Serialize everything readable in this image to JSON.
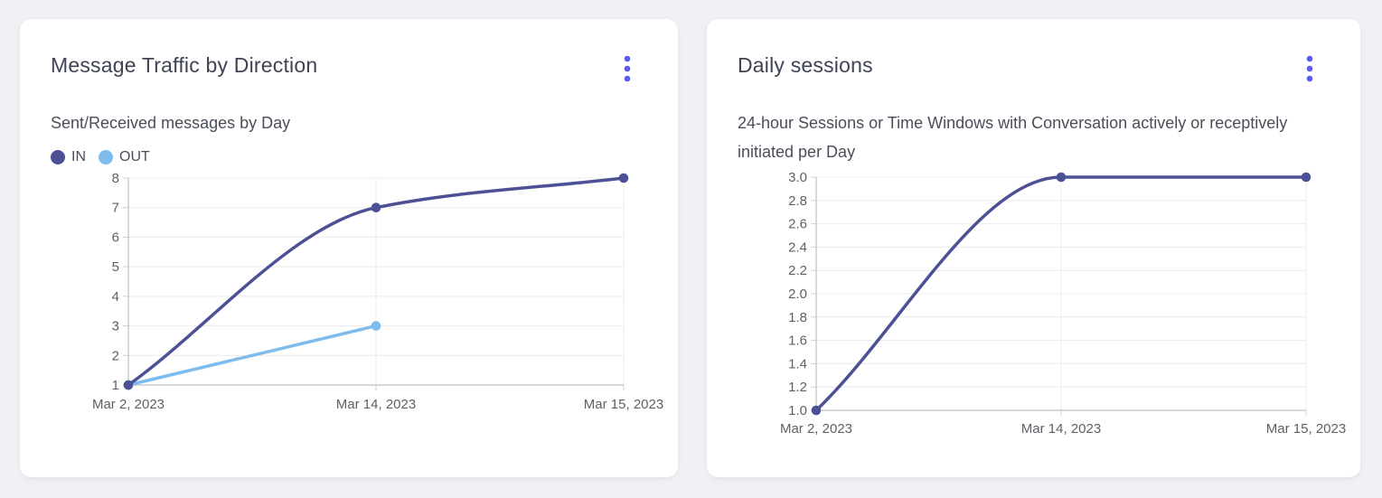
{
  "ui": {
    "background": "#f0f1f4",
    "card_background": "#ffffff",
    "accent": "#5b5bf2",
    "title_color": "#3f4354",
    "subtitle_color": "#4a4e5a",
    "tick_color": "#5d6066",
    "grid_color": "#ececee",
    "axis_color": "#b3b5ba",
    "tick_stub_color": "#cfd0d4",
    "menu_icon": "kebab-menu-icon"
  },
  "chart_data": [
    {
      "type": "line",
      "title": "Message Traffic by Direction",
      "subtitle": "Sent/Received messages by Day",
      "categories": [
        "Mar 2, 2023",
        "Mar 14, 2023",
        "Mar 15, 2023"
      ],
      "series": [
        {
          "name": "IN",
          "color": "#4c5195",
          "values": [
            1,
            7,
            8
          ]
        },
        {
          "name": "OUT",
          "color": "#7dbcec",
          "values": [
            1,
            3,
            null
          ]
        }
      ],
      "ylim": [
        1,
        8
      ],
      "yticks": [
        1,
        2,
        3,
        4,
        5,
        6,
        7,
        8
      ],
      "ytick_labels": [
        "1",
        "2",
        "3",
        "4",
        "5",
        "6",
        "7",
        "8"
      ],
      "xlabel": "",
      "ylabel": "",
      "grid": true,
      "legend_position": "top-left",
      "curve": "monotone"
    },
    {
      "type": "line",
      "title": "Daily sessions",
      "subtitle": "24-hour Sessions or Time Windows with Conversation actively or receptively initiated per Day",
      "categories": [
        "Mar 2, 2023",
        "Mar 14, 2023",
        "Mar 15, 2023"
      ],
      "series": [
        {
          "color": "#4c5195",
          "values": [
            1.0,
            3.0,
            3.0
          ]
        }
      ],
      "ylim": [
        1.0,
        3.0
      ],
      "yticks": [
        1.0,
        1.2,
        1.4,
        1.6,
        1.8,
        2.0,
        2.2,
        2.4,
        2.6,
        2.8,
        3.0
      ],
      "ytick_labels": [
        "1.0",
        "1.2",
        "1.4",
        "1.6",
        "1.8",
        "2.0",
        "2.2",
        "2.4",
        "2.6",
        "2.8",
        "3.0"
      ],
      "xlabel": "",
      "ylabel": "",
      "grid": true,
      "legend_position": "none",
      "curve": "monotone"
    }
  ]
}
